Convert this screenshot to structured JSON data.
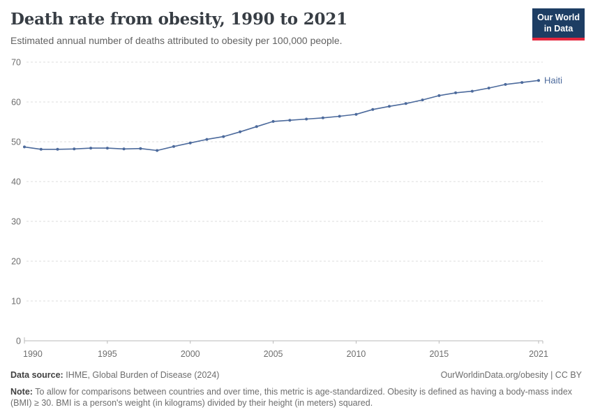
{
  "header": {
    "title": "Death rate from obesity, 1990 to 2021",
    "subtitle": "Estimated annual number of deaths attributed to obesity per 100,000 people.",
    "logo": {
      "line1": "Our World",
      "line2": "in Data",
      "bg_color": "#1d3d63",
      "accent_color": "#e5273e"
    }
  },
  "chart_data": {
    "type": "line",
    "title": "Death rate from obesity, 1990 to 2021",
    "xlabel": "",
    "ylabel": "",
    "xlim": [
      1990,
      2021
    ],
    "ylim": [
      0,
      70
    ],
    "x_ticks": [
      1990,
      1995,
      2000,
      2005,
      2010,
      2015,
      2021
    ],
    "y_ticks": [
      0,
      10,
      20,
      30,
      40,
      50,
      60,
      70
    ],
    "grid": "horizontal-dashed",
    "legend_position": "end-of-line-label",
    "series": [
      {
        "name": "Haiti",
        "color": "#4C6A9C",
        "x": [
          1990,
          1991,
          1992,
          1993,
          1994,
          1995,
          1996,
          1997,
          1998,
          1999,
          2000,
          2001,
          2002,
          2003,
          2004,
          2005,
          2006,
          2007,
          2008,
          2009,
          2010,
          2011,
          2012,
          2013,
          2014,
          2015,
          2016,
          2017,
          2018,
          2019,
          2020,
          2021
        ],
        "values": [
          48.7,
          48.1,
          48.1,
          48.2,
          48.4,
          48.4,
          48.2,
          48.3,
          47.8,
          48.8,
          49.7,
          50.6,
          51.3,
          52.5,
          53.8,
          55.1,
          55.4,
          55.7,
          56.0,
          56.4,
          56.9,
          58.1,
          58.9,
          59.6,
          60.5,
          61.6,
          62.3,
          62.7,
          63.5,
          64.4,
          64.9,
          65.4
        ]
      }
    ],
    "colors": {
      "gridline": "#dcdcdc",
      "axis": "#b9b9b9",
      "tick_label": "#6e6e6e"
    }
  },
  "footer": {
    "datasource_label": "Data source:",
    "datasource_value": "IHME, Global Burden of Disease (2024)",
    "link": "OurWorldinData.org/obesity | CC BY",
    "note_label": "Note:",
    "note_text": "To allow for comparisons between countries and over time, this metric is age-standardized. Obesity is defined as having a body-mass index (BMI) ≥ 30. BMI is a person's weight (in kilograms) divided by their height (in meters) squared."
  }
}
